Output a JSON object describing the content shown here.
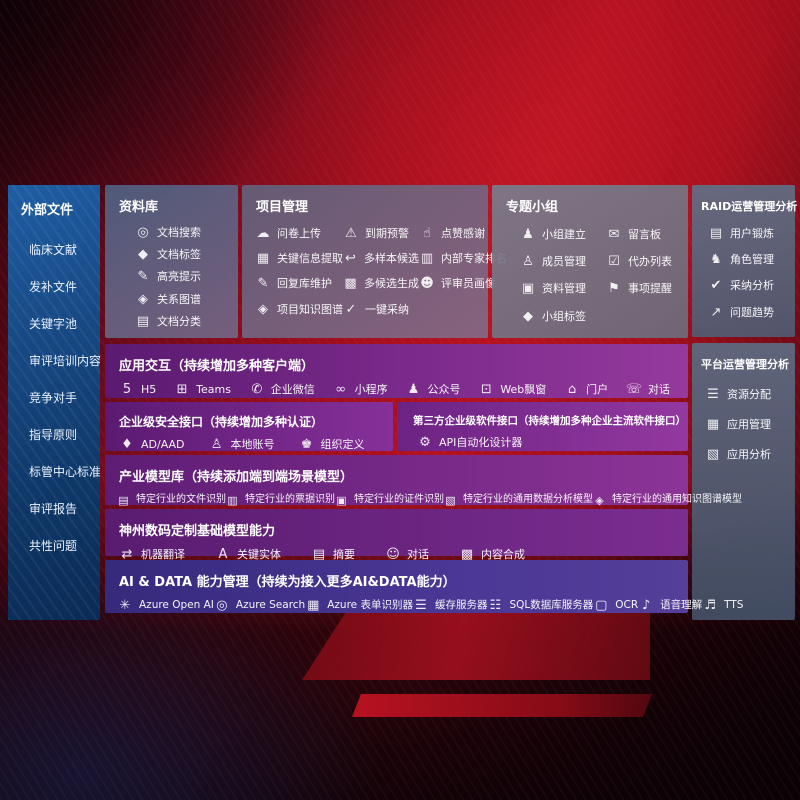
{
  "colors": {
    "background_red": "#b31120",
    "sidebar_blue": "#174984",
    "panel_gray": "#6a7288",
    "row_purple": "#7c2b8c",
    "row_indigo": "#4b3795"
  },
  "sidebar": {
    "title": "外部文件",
    "items": [
      "临床文献",
      "发补文件",
      "关键字池",
      "审评培训内容",
      "竞争对手",
      "指导原则",
      "标管中心标准",
      "审评报告",
      "共性问题"
    ]
  },
  "panels": {
    "library": {
      "title": "资料库",
      "items": [
        {
          "icon": "doc-search-icon",
          "label": "文档搜索"
        },
        {
          "icon": "doc-tag-icon",
          "label": "文档标签"
        },
        {
          "icon": "highlight-icon",
          "label": "高亮提示"
        },
        {
          "icon": "relation-graph-icon",
          "label": "关系图谱"
        },
        {
          "icon": "doc-classify-icon",
          "label": "文档分类"
        }
      ]
    },
    "project": {
      "title": "项目管理",
      "items": [
        {
          "icon": "cloud-upload-icon",
          "label": "问卷上传"
        },
        {
          "icon": "alarm-icon",
          "label": "到期预警"
        },
        {
          "icon": "thumbs-up-icon",
          "label": "点赞感谢"
        },
        {
          "icon": "info-extract-icon",
          "label": "关键信息提取"
        },
        {
          "icon": "multi-sample-icon",
          "label": "多样本候选"
        },
        {
          "icon": "expert-ranking-icon",
          "label": "内部专家排名"
        },
        {
          "icon": "reply-maintain-icon",
          "label": "回复库维护"
        },
        {
          "icon": "multi-generate-icon",
          "label": "多候选生成"
        },
        {
          "icon": "reviewer-profile-icon",
          "label": "评审员画像"
        },
        {
          "icon": "project-graph-icon",
          "label": "项目知识图谱"
        },
        {
          "icon": "one-click-adopt-icon",
          "label": "一键采纳"
        }
      ]
    },
    "groups": {
      "title": "专题小组",
      "items": [
        {
          "icon": "group-create-icon",
          "label": "小组建立"
        },
        {
          "icon": "message-board-icon",
          "label": "留言板"
        },
        {
          "icon": "member-manage-icon",
          "label": "成员管理"
        },
        {
          "icon": "todo-list-icon",
          "label": "代办列表"
        },
        {
          "icon": "material-manage-icon",
          "label": "资料管理"
        },
        {
          "icon": "reminder-icon",
          "label": "事项提醒"
        },
        {
          "icon": "group-tag-icon",
          "label": "小组标签"
        }
      ]
    },
    "raid": {
      "title": "RAID运营管理分析",
      "items": [
        {
          "icon": "user-card-icon",
          "label": "用户锻炼"
        },
        {
          "icon": "role-manage-icon",
          "label": "角色管理"
        },
        {
          "icon": "adoption-analysis-icon",
          "label": "采纳分析"
        },
        {
          "icon": "issue-trend-icon",
          "label": "问题趋势"
        }
      ]
    },
    "platform": {
      "title": "平台运营管理分析",
      "items": [
        {
          "icon": "resource-alloc-icon",
          "label": "资源分配"
        },
        {
          "icon": "app-manage-icon",
          "label": "应用管理"
        },
        {
          "icon": "app-analysis-icon",
          "label": "应用分析"
        }
      ]
    },
    "interaction": {
      "title": "应用交互（持续增加多种客户端）",
      "items": [
        {
          "icon": "h5-icon",
          "label": "H5"
        },
        {
          "icon": "teams-icon",
          "label": "Teams"
        },
        {
          "icon": "wecom-icon",
          "label": "企业微信"
        },
        {
          "icon": "miniprogram-icon",
          "label": "小程序"
        },
        {
          "icon": "official-account-icon",
          "label": "公众号"
        },
        {
          "icon": "web-popup-icon",
          "label": "Web飘窗"
        },
        {
          "icon": "portal-icon",
          "label": "门户"
        },
        {
          "icon": "chat-icon",
          "label": "对话"
        }
      ]
    },
    "security": {
      "title": "企业级安全接口（持续增加多种认证）",
      "items": [
        {
          "icon": "ad-aad-icon",
          "label": "AD/AAD"
        },
        {
          "icon": "local-account-icon",
          "label": "本地账号"
        },
        {
          "icon": "org-define-icon",
          "label": "组织定义"
        }
      ]
    },
    "thirdparty": {
      "title": "第三方企业级软件接口（持续增加多种企业主流软件接口）",
      "items": [
        {
          "icon": "api-designer-icon",
          "label": "API自动化设计器"
        }
      ]
    },
    "models": {
      "title": "产业模型库（持续添加端到端场景模型）",
      "items": [
        {
          "icon": "file-recognition-icon",
          "label": "特定行业的文件识别"
        },
        {
          "icon": "bill-recognition-icon",
          "label": "特定行业的票据识别"
        },
        {
          "icon": "certificate-recognition-icon",
          "label": "特定行业的证件识别"
        },
        {
          "icon": "data-analysis-model-icon",
          "label": "特定行业的通用数据分析模型"
        },
        {
          "icon": "knowledge-graph-model-icon",
          "label": "特定行业的通用知识图谱模型"
        }
      ]
    },
    "foundation": {
      "title": "神州数码定制基础模型能力",
      "items": [
        {
          "icon": "machine-translate-icon",
          "label": "机器翻译"
        },
        {
          "icon": "key-entity-icon",
          "label": "关键实体"
        },
        {
          "icon": "summary-icon",
          "label": "摘要"
        },
        {
          "icon": "dialogue-icon",
          "label": "对话"
        },
        {
          "icon": "content-synthesis-icon",
          "label": "内容合成"
        }
      ]
    },
    "aidata": {
      "title": "AI & DATA 能力管理（持续为接入更多AI&DATA能力）",
      "items": [
        {
          "icon": "openai-icon",
          "label": "Azure Open AI"
        },
        {
          "icon": "azure-search-icon",
          "label": "Azure Search"
        },
        {
          "icon": "form-recognizer-icon",
          "label": "Azure 表单识别器"
        },
        {
          "icon": "cache-server-icon",
          "label": "缓存服务器"
        },
        {
          "icon": "sql-server-icon",
          "label": "SQL数据库服务器"
        },
        {
          "icon": "ocr-icon",
          "label": "OCR"
        },
        {
          "icon": "speech-understanding-icon",
          "label": "语音理解"
        },
        {
          "icon": "tts-icon",
          "label": "TTS"
        }
      ]
    }
  }
}
